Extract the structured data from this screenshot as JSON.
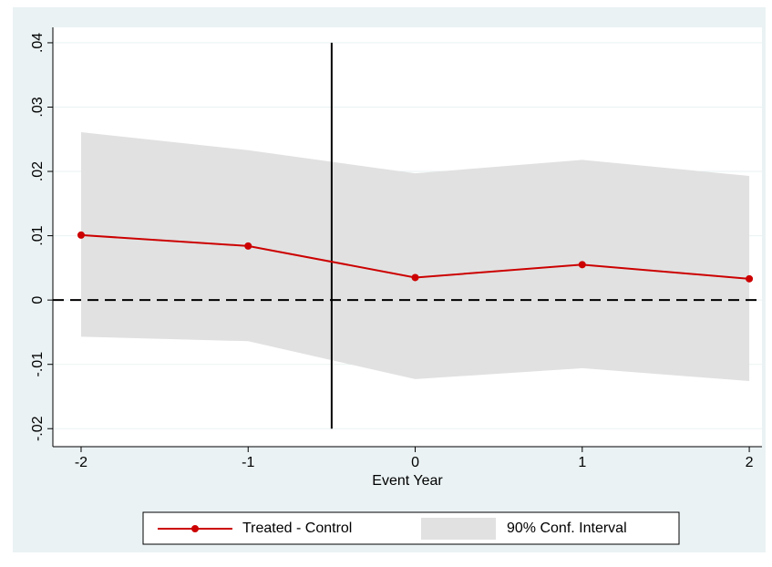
{
  "chart_data": {
    "type": "line",
    "xlabel": "Event Year",
    "x": [
      -2,
      -1,
      0,
      1,
      2
    ],
    "xlim": [
      -2.169,
      2.076
    ],
    "xticks": [
      -2,
      -1,
      0,
      1,
      2
    ],
    "ylim": [
      -0.0228,
      0.0424
    ],
    "yticks": [
      {
        "value": -0.02,
        "label": "-.02"
      },
      {
        "value": -0.01,
        "label": "-.01"
      },
      0,
      {
        "value": 0.01,
        "label": ".01"
      },
      {
        "value": 0.02,
        "label": ".02"
      },
      {
        "value": 0.03,
        "label": ".03"
      },
      {
        "value": 0.04,
        "label": ".04"
      }
    ],
    "grid": true,
    "series": [
      {
        "name": "Treated - Control",
        "color": "#cc0000",
        "values": [
          0.0101,
          0.0084,
          0.0035,
          0.0055,
          0.0033
        ]
      }
    ],
    "band": {
      "name": "90% Conf. Interval",
      "color": "#e1e1e1",
      "upper": [
        0.0261,
        0.0233,
        0.0197,
        0.0218,
        0.0193
      ],
      "lower": [
        -0.0057,
        -0.0064,
        -0.0123,
        -0.0106,
        -0.0126
      ]
    },
    "xline": -0.5,
    "yline": 0,
    "legend": "bottom"
  }
}
